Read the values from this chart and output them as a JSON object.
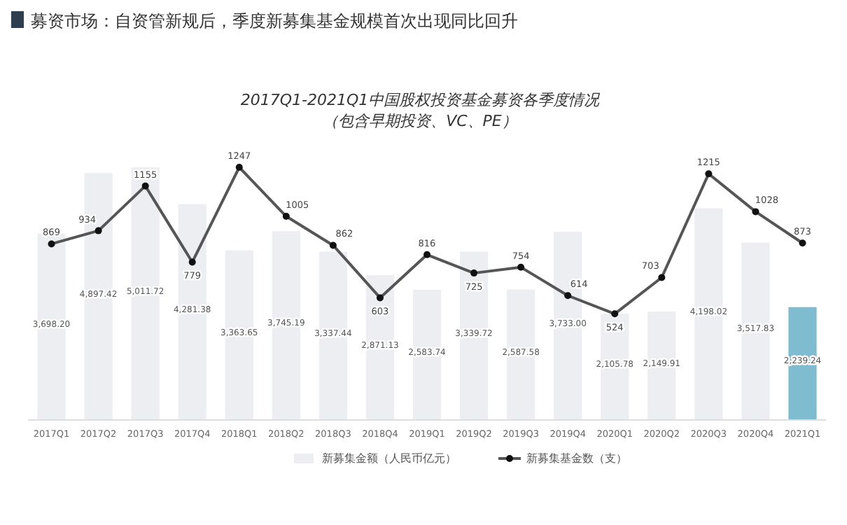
{
  "chart_data": {
    "type": "bar",
    "title": "2017Q1-2021Q1中国股权投资基金募资各季度情况",
    "subtitle": "（包含早期投资、VC、PE）",
    "annotations": [
      "募资市场：自资管新规后，季度新募集基金规模首次出现同比回升"
    ],
    "categories": [
      "2017Q1",
      "2017Q2",
      "2017Q3",
      "2017Q4",
      "2018Q1",
      "2018Q2",
      "2018Q3",
      "2018Q4",
      "2019Q1",
      "2019Q2",
      "2019Q3",
      "2019Q4",
      "2020Q1",
      "2020Q2",
      "2020Q3",
      "2020Q4",
      "2021Q1"
    ],
    "series": [
      {
        "name": "新募集金额（人民币亿元）",
        "color": "#eceef2",
        "colors": [
          "#eceef2",
          "#eceef2",
          "#eceef2",
          "#eceef2",
          "#eceef2",
          "#eceef2",
          "#eceef2",
          "#eceef2",
          "#eceef2",
          "#eceef2",
          "#eceef2",
          "#eceef2",
          "#eceef2",
          "#eceef2",
          "#eceef2",
          "#eceef2",
          "#7fbccf"
        ],
        "values": [
          3698.2,
          4897.42,
          5011.72,
          4281.38,
          3363.65,
          3745.19,
          3337.44,
          2871.13,
          2583.74,
          3339.72,
          2587.58,
          3733.0,
          2105.78,
          2149.91,
          4198.02,
          3517.83,
          2239.24
        ],
        "value_labels": [
          "3,698.20",
          "4,897.42",
          "5,011.72",
          "4,281.38",
          "3,363.65",
          "3,745.19",
          "3,337.44",
          "2,871.13",
          "2,583.74",
          "3,339.72",
          "2,587.58",
          "3,733.00",
          "2,105.78",
          "2,149.91",
          "4,198.02",
          "3,517.83",
          "2,239.24"
        ]
      },
      {
        "name": "新募集基金数（支）",
        "type": "line",
        "axis": "y2",
        "color": "#555555",
        "values": [
          869,
          934,
          1155,
          779,
          1247,
          1005,
          862,
          603,
          816,
          725,
          754,
          614,
          524,
          703,
          1215,
          1028,
          873
        ],
        "value_labels": [
          "869",
          "934",
          "1155",
          "779",
          "1247",
          "1005",
          "862",
          "603",
          "816",
          "725",
          "754",
          "614",
          "524",
          "703",
          "1215",
          "1028",
          "873"
        ]
      }
    ],
    "legend": "bottom",
    "marker": "circle",
    "line_style": "solid",
    "grid": false
  }
}
